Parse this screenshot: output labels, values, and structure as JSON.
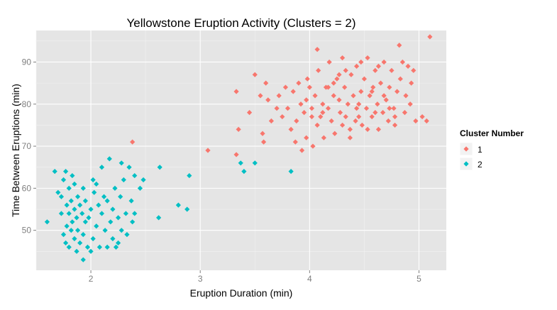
{
  "chart_data": {
    "type": "scatter",
    "title": "Yellowstone Eruption Activity (Clusters = 2)",
    "xlabel": "Eruption Duration (min)",
    "ylabel": "Time Between Eruptions (min)",
    "xlim": [
      1.5,
      5.25
    ],
    "ylim": [
      40.5,
      97.5
    ],
    "x_ticks": [
      2,
      3,
      4,
      5
    ],
    "y_ticks": [
      50,
      60,
      70,
      80,
      90
    ],
    "grid": true,
    "legend": {
      "title": "Cluster Number",
      "position": "right",
      "entries": [
        "1",
        "2"
      ]
    },
    "series": [
      {
        "name": "1",
        "color": "#F8766D",
        "points": [
          [
            2.38,
            71
          ],
          [
            3.07,
            69
          ],
          [
            3.33,
            83
          ],
          [
            3.35,
            74
          ],
          [
            3.33,
            68
          ],
          [
            3.45,
            78
          ],
          [
            3.5,
            87
          ],
          [
            3.55,
            82
          ],
          [
            3.57,
            73
          ],
          [
            3.58,
            71
          ],
          [
            3.6,
            85
          ],
          [
            3.62,
            81
          ],
          [
            3.65,
            76
          ],
          [
            3.7,
            79
          ],
          [
            3.72,
            82
          ],
          [
            3.75,
            77
          ],
          [
            3.78,
            84
          ],
          [
            3.8,
            79
          ],
          [
            3.83,
            74
          ],
          [
            3.85,
            83
          ],
          [
            3.87,
            71
          ],
          [
            3.88,
            76
          ],
          [
            3.9,
            85
          ],
          [
            3.92,
            80
          ],
          [
            3.93,
            69
          ],
          [
            3.95,
            78
          ],
          [
            3.97,
            72
          ],
          [
            3.98,
            86
          ],
          [
            4.0,
            84
          ],
          [
            4.02,
            79
          ],
          [
            4.03,
            70
          ],
          [
            4.05,
            82
          ],
          [
            4.07,
            75
          ],
          [
            4.08,
            88
          ],
          [
            4.1,
            77
          ],
          [
            4.12,
            80
          ],
          [
            4.13,
            72
          ],
          [
            4.15,
            84
          ],
          [
            4.17,
            79
          ],
          [
            4.18,
            90
          ],
          [
            4.2,
            76
          ],
          [
            4.22,
            82
          ],
          [
            4.23,
            73
          ],
          [
            4.25,
            86
          ],
          [
            4.27,
            81
          ],
          [
            4.28,
            78
          ],
          [
            4.3,
            91
          ],
          [
            4.32,
            84
          ],
          [
            4.33,
            77
          ],
          [
            4.35,
            80
          ],
          [
            4.37,
            74
          ],
          [
            4.38,
            87
          ],
          [
            4.4,
            82
          ],
          [
            4.42,
            76
          ],
          [
            4.43,
            89
          ],
          [
            4.45,
            80
          ],
          [
            4.47,
            83
          ],
          [
            4.48,
            75
          ],
          [
            4.5,
            86
          ],
          [
            4.52,
            79
          ],
          [
            4.53,
            91
          ],
          [
            4.55,
            82
          ],
          [
            4.57,
            77
          ],
          [
            4.58,
            84
          ],
          [
            4.6,
            88
          ],
          [
            4.62,
            80
          ],
          [
            4.63,
            74
          ],
          [
            4.65,
            85
          ],
          [
            4.67,
            78
          ],
          [
            4.68,
            90
          ],
          [
            4.7,
            81
          ],
          [
            4.72,
            76
          ],
          [
            4.73,
            84
          ],
          [
            4.75,
            88
          ],
          [
            4.77,
            79
          ],
          [
            4.78,
            75
          ],
          [
            4.8,
            83
          ],
          [
            4.82,
            94
          ],
          [
            4.83,
            86
          ],
          [
            4.85,
            90
          ],
          [
            4.87,
            78
          ],
          [
            4.88,
            82
          ],
          [
            4.9,
            89
          ],
          [
            4.92,
            80
          ],
          [
            4.93,
            85
          ],
          [
            4.95,
            88
          ],
          [
            4.97,
            76
          ],
          [
            5.03,
            77
          ],
          [
            5.07,
            76
          ],
          [
            5.1,
            96
          ],
          [
            4.07,
            93
          ],
          [
            4.12,
            78
          ],
          [
            4.22,
            85
          ],
          [
            4.33,
            88
          ],
          [
            4.43,
            79
          ],
          [
            4.53,
            74
          ],
          [
            4.63,
            89
          ],
          [
            4.73,
            79
          ],
          [
            4.57,
            83
          ],
          [
            4.47,
            90
          ],
          [
            4.17,
            84
          ],
          [
            4.27,
            87
          ],
          [
            4.37,
            72
          ],
          [
            4.02,
            77
          ],
          [
            3.97,
            81
          ],
          [
            4.68,
            82
          ],
          [
            4.78,
            77
          ],
          [
            4.3,
            75
          ],
          [
            4.45,
            77
          ],
          [
            4.6,
            78
          ]
        ]
      },
      {
        "name": "2",
        "color": "#00BFC4",
        "points": [
          [
            1.6,
            52
          ],
          [
            1.67,
            64
          ],
          [
            1.7,
            59
          ],
          [
            1.73,
            54
          ],
          [
            1.73,
            58
          ],
          [
            1.75,
            49
          ],
          [
            1.75,
            62
          ],
          [
            1.77,
            47
          ],
          [
            1.78,
            56
          ],
          [
            1.78,
            51
          ],
          [
            1.8,
            46
          ],
          [
            1.8,
            54
          ],
          [
            1.8,
            60
          ],
          [
            1.82,
            50
          ],
          [
            1.82,
            57
          ],
          [
            1.83,
            63
          ],
          [
            1.83,
            52
          ],
          [
            1.85,
            48
          ],
          [
            1.85,
            55
          ],
          [
            1.85,
            61
          ],
          [
            1.87,
            45
          ],
          [
            1.87,
            53
          ],
          [
            1.88,
            58
          ],
          [
            1.88,
            50
          ],
          [
            1.9,
            47
          ],
          [
            1.9,
            56
          ],
          [
            1.92,
            54
          ],
          [
            1.93,
            49
          ],
          [
            1.93,
            60
          ],
          [
            1.95,
            52
          ],
          [
            1.95,
            57
          ],
          [
            1.97,
            46
          ],
          [
            1.98,
            53
          ],
          [
            2.0,
            55
          ],
          [
            2.02,
            48
          ],
          [
            2.02,
            62
          ],
          [
            2.03,
            59
          ],
          [
            2.05,
            51
          ],
          [
            2.07,
            56
          ],
          [
            2.08,
            46
          ],
          [
            2.1,
            65
          ],
          [
            2.1,
            54
          ],
          [
            2.12,
            58
          ],
          [
            2.13,
            50
          ],
          [
            2.15,
            57
          ],
          [
            2.17,
            67
          ],
          [
            2.18,
            52
          ],
          [
            2.2,
            48
          ],
          [
            2.2,
            55
          ],
          [
            2.22,
            60
          ],
          [
            2.23,
            46
          ],
          [
            2.25,
            53
          ],
          [
            2.27,
            58
          ],
          [
            2.28,
            50
          ],
          [
            2.3,
            62
          ],
          [
            2.32,
            54
          ],
          [
            2.33,
            49
          ],
          [
            2.35,
            65
          ],
          [
            2.37,
            57
          ],
          [
            2.38,
            52
          ],
          [
            2.4,
            54
          ],
          [
            2.4,
            63
          ],
          [
            2.45,
            60
          ],
          [
            2.48,
            62
          ],
          [
            2.62,
            53
          ],
          [
            2.63,
            65
          ],
          [
            2.8,
            56
          ],
          [
            2.88,
            55
          ],
          [
            2.9,
            63
          ],
          [
            3.37,
            66
          ],
          [
            3.4,
            64
          ],
          [
            3.5,
            66
          ],
          [
            3.83,
            64
          ],
          [
            1.93,
            43
          ],
          [
            2.0,
            45
          ],
          [
            2.15,
            46
          ],
          [
            2.25,
            47
          ],
          [
            1.77,
            64
          ],
          [
            2.05,
            61
          ],
          [
            2.28,
            66
          ]
        ]
      }
    ]
  }
}
